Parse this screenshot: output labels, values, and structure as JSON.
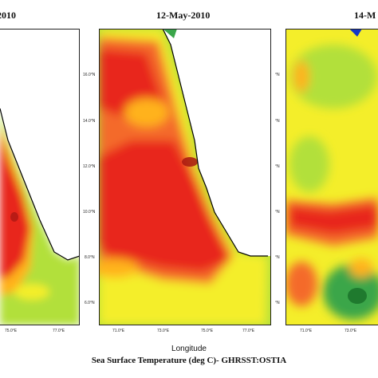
{
  "panels": [
    {
      "title": "2010"
    },
    {
      "title": "12-May-2010"
    },
    {
      "title": "14-M"
    }
  ],
  "middle_lat_ticks": [
    "16.0°N",
    "14.0°N",
    "12.0°N",
    "10.0°N",
    "8.0°N",
    "6.0°N"
  ],
  "right_lat_ticks": [
    "°N",
    "°N",
    "°N",
    "°N",
    "°N",
    "°N"
  ],
  "left_lon_ticks": [
    "75.0°E",
    "77.0°E"
  ],
  "middle_lon_ticks": [
    "71.0°E",
    "73.0°E",
    "75.0°E",
    "77.0°E"
  ],
  "right_lon_ticks": [
    "71.0°E",
    "73.0°E"
  ],
  "x_axis_label": "Longitude",
  "caption": "Sea Surface Temperature (deg C)- GHRSST:OSTIA",
  "colors": {
    "warmest": "#e8261f",
    "warm": "#f46b2a",
    "mid_warm": "#ffb21e",
    "mid": "#f4ee2a",
    "cool": "#b2e03a",
    "coolest": "#3aa64a",
    "cold_spot": "#1338c8",
    "land": "#ffffff",
    "coastline": "#000000"
  }
}
